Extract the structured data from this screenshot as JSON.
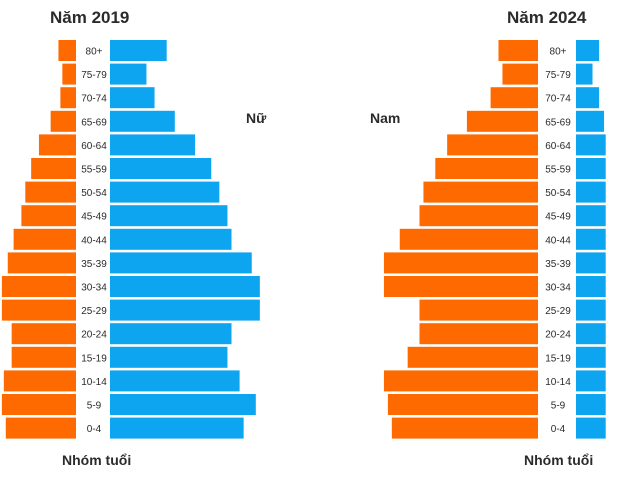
{
  "colors": {
    "male": "#FF6A00",
    "female": "#0EA5F0"
  },
  "chart_data": [
    {
      "type": "bar",
      "title": "Năm 2019",
      "ylabel": "Nhóm tuổi",
      "categories": [
        "80+",
        "75-79",
        "70-74",
        "65-69",
        "60-64",
        "55-59",
        "50-54",
        "45-49",
        "40-44",
        "35-39",
        "30-34",
        "25-29",
        "20-24",
        "15-19",
        "10-14",
        "5-9",
        "0-4"
      ],
      "series": [
        {
          "name": "Nam",
          "values": [
            0.9,
            0.7,
            0.8,
            1.3,
            1.9,
            2.3,
            2.6,
            2.8,
            3.2,
            3.5,
            3.8,
            3.8,
            3.3,
            3.3,
            3.7,
            3.8,
            3.6
          ]
        },
        {
          "name": "Nữ",
          "values": [
            1.4,
            0.9,
            1.1,
            1.6,
            2.1,
            2.5,
            2.7,
            2.9,
            3.0,
            3.5,
            3.7,
            3.7,
            3.0,
            2.9,
            3.2,
            3.6,
            3.3
          ]
        }
      ],
      "xlim": [
        0,
        4
      ]
    },
    {
      "type": "bar",
      "title": "Năm 2024",
      "ylabel": "Nhóm tuổi",
      "categories": [
        "80+",
        "75-79",
        "70-74",
        "65-69",
        "60-64",
        "55-59",
        "50-54",
        "45-49",
        "40-44",
        "35-39",
        "30-34",
        "25-29",
        "20-24",
        "15-19",
        "10-14",
        "5-9",
        "0-4"
      ],
      "series": [
        {
          "name": "Nam",
          "values": [
            1.0,
            0.9,
            1.2,
            1.8,
            2.3,
            2.6,
            2.9,
            3.0,
            3.5,
            3.9,
            3.9,
            3.0,
            3.0,
            3.3,
            3.9,
            3.8,
            3.7
          ]
        },
        {
          "name": "Nữ",
          "values": [
            1.4,
            1.0,
            1.4,
            1.7,
            1.8,
            1.8,
            1.8,
            1.8,
            1.8,
            1.8,
            1.8,
            1.8,
            1.8,
            1.8,
            1.8,
            1.8,
            1.8
          ]
        }
      ],
      "xlim": [
        0,
        4
      ]
    }
  ]
}
